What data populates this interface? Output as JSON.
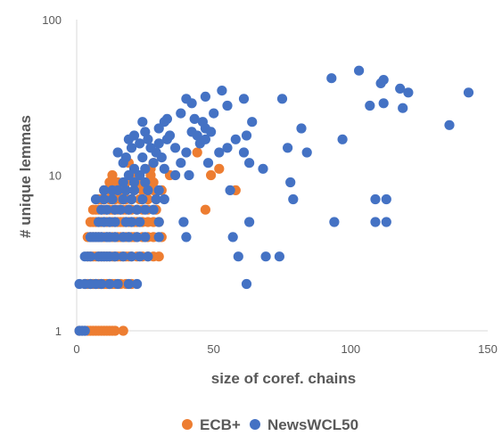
{
  "chart_data": {
    "type": "scatter",
    "title": "",
    "xlabel": "size of coref. chains",
    "ylabel": "# unique lemmas",
    "xlim": [
      0,
      150
    ],
    "ylim": [
      1,
      100
    ],
    "y_scale": "log",
    "x_ticks": [
      "0",
      "50",
      "100",
      "150"
    ],
    "y_ticks": [
      "1",
      "10",
      "100"
    ],
    "grid": false,
    "legend_position": "bottom",
    "series": [
      {
        "name": "ECB+",
        "color": "#ED7D31",
        "points": [
          [
            1,
            1
          ],
          [
            2,
            1
          ],
          [
            3,
            1
          ],
          [
            4,
            1
          ],
          [
            5,
            1
          ],
          [
            6,
            1
          ],
          [
            7,
            1
          ],
          [
            8,
            1
          ],
          [
            9,
            1
          ],
          [
            10,
            1
          ],
          [
            11,
            1
          ],
          [
            12,
            1
          ],
          [
            13,
            1
          ],
          [
            14,
            1
          ],
          [
            17,
            1
          ],
          [
            3,
            2
          ],
          [
            4,
            2
          ],
          [
            5,
            2
          ],
          [
            6,
            2
          ],
          [
            7,
            2
          ],
          [
            8,
            2
          ],
          [
            9,
            2
          ],
          [
            10,
            2
          ],
          [
            11,
            2
          ],
          [
            12,
            2
          ],
          [
            13,
            2
          ],
          [
            14,
            2
          ],
          [
            16,
            2
          ],
          [
            18,
            2
          ],
          [
            20,
            2
          ],
          [
            4,
            3
          ],
          [
            5,
            3
          ],
          [
            6,
            3
          ],
          [
            7,
            3
          ],
          [
            8,
            3
          ],
          [
            9,
            3
          ],
          [
            10,
            3
          ],
          [
            11,
            3
          ],
          [
            12,
            3
          ],
          [
            13,
            3
          ],
          [
            14,
            3
          ],
          [
            15,
            3
          ],
          [
            16,
            3
          ],
          [
            17,
            3
          ],
          [
            18,
            3
          ],
          [
            19,
            3
          ],
          [
            20,
            3
          ],
          [
            22,
            3
          ],
          [
            24,
            3
          ],
          [
            26,
            3
          ],
          [
            28,
            3
          ],
          [
            30,
            3
          ],
          [
            4,
            4
          ],
          [
            5,
            4
          ],
          [
            6,
            4
          ],
          [
            7,
            4
          ],
          [
            8,
            4
          ],
          [
            9,
            4
          ],
          [
            10,
            4
          ],
          [
            11,
            4
          ],
          [
            12,
            4
          ],
          [
            13,
            4
          ],
          [
            14,
            4
          ],
          [
            15,
            4
          ],
          [
            16,
            4
          ],
          [
            17,
            4
          ],
          [
            18,
            4
          ],
          [
            19,
            4
          ],
          [
            20,
            4
          ],
          [
            21,
            4
          ],
          [
            22,
            4
          ],
          [
            24,
            4
          ],
          [
            26,
            4
          ],
          [
            28,
            4
          ],
          [
            31,
            4
          ],
          [
            5,
            5
          ],
          [
            6,
            5
          ],
          [
            7,
            5
          ],
          [
            8,
            5
          ],
          [
            9,
            5
          ],
          [
            10,
            5
          ],
          [
            11,
            5
          ],
          [
            12,
            5
          ],
          [
            13,
            5
          ],
          [
            14,
            5
          ],
          [
            15,
            5
          ],
          [
            16,
            5
          ],
          [
            17,
            5
          ],
          [
            18,
            5
          ],
          [
            19,
            5
          ],
          [
            20,
            5
          ],
          [
            21,
            5
          ],
          [
            22,
            5
          ],
          [
            24,
            5
          ],
          [
            26,
            5
          ],
          [
            28,
            5
          ],
          [
            30,
            5
          ],
          [
            6,
            6
          ],
          [
            7,
            6
          ],
          [
            8,
            6
          ],
          [
            9,
            6
          ],
          [
            10,
            6
          ],
          [
            11,
            6
          ],
          [
            12,
            6
          ],
          [
            13,
            6
          ],
          [
            14,
            6
          ],
          [
            15,
            6
          ],
          [
            16,
            6
          ],
          [
            17,
            6
          ],
          [
            18,
            6
          ],
          [
            19,
            6
          ],
          [
            20,
            6
          ],
          [
            22,
            6
          ],
          [
            24,
            6
          ],
          [
            26,
            6
          ],
          [
            29,
            6
          ],
          [
            47,
            6
          ],
          [
            8,
            7
          ],
          [
            9,
            7
          ],
          [
            10,
            7
          ],
          [
            12,
            7
          ],
          [
            14,
            7
          ],
          [
            16,
            7
          ],
          [
            18,
            7
          ],
          [
            20,
            7
          ],
          [
            23,
            7
          ],
          [
            26,
            7
          ],
          [
            29,
            7
          ],
          [
            10,
            8
          ],
          [
            12,
            8
          ],
          [
            14,
            8
          ],
          [
            16,
            8
          ],
          [
            18,
            8
          ],
          [
            21,
            8
          ],
          [
            24,
            8
          ],
          [
            28,
            8
          ],
          [
            31,
            8
          ],
          [
            58,
            8
          ],
          [
            12,
            9
          ],
          [
            15,
            9
          ],
          [
            18,
            9
          ],
          [
            22,
            9
          ],
          [
            25,
            9
          ],
          [
            28,
            9
          ],
          [
            13,
            10
          ],
          [
            20,
            10
          ],
          [
            27,
            10
          ],
          [
            34,
            10
          ],
          [
            49,
            10
          ],
          [
            27,
            11
          ],
          [
            52,
            11
          ],
          [
            19,
            12
          ],
          [
            28,
            12
          ],
          [
            44,
            14
          ]
        ]
      },
      {
        "name": "NewsWCL50",
        "color": "#4472C4",
        "points": [
          [
            1,
            1
          ],
          [
            2,
            1
          ],
          [
            3,
            1
          ],
          [
            1,
            2
          ],
          [
            3,
            2
          ],
          [
            5,
            2
          ],
          [
            7,
            2
          ],
          [
            9,
            2
          ],
          [
            12,
            2
          ],
          [
            15,
            2
          ],
          [
            19,
            2
          ],
          [
            22,
            2
          ],
          [
            62,
            2
          ],
          [
            3,
            3
          ],
          [
            4,
            3
          ],
          [
            5,
            3
          ],
          [
            8,
            3
          ],
          [
            9,
            3
          ],
          [
            10,
            3
          ],
          [
            11,
            3
          ],
          [
            12,
            3
          ],
          [
            14,
            3
          ],
          [
            17,
            3
          ],
          [
            20,
            3
          ],
          [
            23,
            3
          ],
          [
            26,
            3
          ],
          [
            59,
            3
          ],
          [
            69,
            3
          ],
          [
            74,
            3
          ],
          [
            5,
            4
          ],
          [
            6,
            4
          ],
          [
            7,
            4
          ],
          [
            8,
            4
          ],
          [
            9,
            4
          ],
          [
            11,
            4
          ],
          [
            12,
            4
          ],
          [
            14,
            4
          ],
          [
            17,
            4
          ],
          [
            19,
            4
          ],
          [
            22,
            4
          ],
          [
            25,
            4
          ],
          [
            30,
            4
          ],
          [
            40,
            4
          ],
          [
            57,
            4
          ],
          [
            8,
            5
          ],
          [
            10,
            5
          ],
          [
            12,
            5
          ],
          [
            14,
            5
          ],
          [
            18,
            5
          ],
          [
            20,
            5
          ],
          [
            23,
            5
          ],
          [
            30,
            5
          ],
          [
            39,
            5
          ],
          [
            63,
            5
          ],
          [
            94,
            5
          ],
          [
            109,
            5
          ],
          [
            113,
            5
          ],
          [
            9,
            6
          ],
          [
            11,
            6
          ],
          [
            14,
            6
          ],
          [
            16,
            6
          ],
          [
            19,
            6
          ],
          [
            22,
            6
          ],
          [
            25,
            6
          ],
          [
            28,
            6
          ],
          [
            7,
            7
          ],
          [
            10,
            7
          ],
          [
            13,
            7
          ],
          [
            17,
            7
          ],
          [
            20,
            7
          ],
          [
            24,
            7
          ],
          [
            29,
            7
          ],
          [
            32,
            7
          ],
          [
            79,
            7
          ],
          [
            109,
            7
          ],
          [
            113,
            7
          ],
          [
            10,
            8
          ],
          [
            13,
            8
          ],
          [
            15,
            8
          ],
          [
            18,
            8
          ],
          [
            21,
            8
          ],
          [
            26,
            8
          ],
          [
            30,
            8
          ],
          [
            56,
            8
          ],
          [
            17,
            9
          ],
          [
            21,
            9
          ],
          [
            25,
            9
          ],
          [
            78,
            9
          ],
          [
            19,
            10
          ],
          [
            23,
            10
          ],
          [
            36,
            10
          ],
          [
            41,
            10
          ],
          [
            21,
            11
          ],
          [
            25,
            11
          ],
          [
            32,
            11
          ],
          [
            68,
            11
          ],
          [
            17,
            12
          ],
          [
            28,
            12
          ],
          [
            38,
            12
          ],
          [
            48,
            12
          ],
          [
            63,
            12
          ],
          [
            18,
            13
          ],
          [
            24,
            13
          ],
          [
            31,
            13
          ],
          [
            15,
            14
          ],
          [
            29,
            14
          ],
          [
            40,
            14
          ],
          [
            52,
            14
          ],
          [
            61,
            14
          ],
          [
            84,
            14
          ],
          [
            20,
            15
          ],
          [
            27,
            15
          ],
          [
            36,
            15
          ],
          [
            55,
            15
          ],
          [
            77,
            15
          ],
          [
            23,
            16
          ],
          [
            30,
            16
          ],
          [
            45,
            16
          ],
          [
            19,
            17
          ],
          [
            26,
            17
          ],
          [
            33,
            17
          ],
          [
            47,
            17
          ],
          [
            58,
            17
          ],
          [
            97,
            17
          ],
          [
            21,
            18
          ],
          [
            34,
            18
          ],
          [
            44,
            18
          ],
          [
            62,
            18
          ],
          [
            25,
            19
          ],
          [
            42,
            19
          ],
          [
            49,
            19
          ],
          [
            30,
            20
          ],
          [
            47,
            20
          ],
          [
            82,
            20
          ],
          [
            136,
            21
          ],
          [
            24,
            22
          ],
          [
            32,
            22
          ],
          [
            46,
            22
          ],
          [
            64,
            22
          ],
          [
            33,
            23
          ],
          [
            43,
            23
          ],
          [
            38,
            25
          ],
          [
            50,
            25
          ],
          [
            119,
            27
          ],
          [
            55,
            28
          ],
          [
            107,
            28
          ],
          [
            42,
            29
          ],
          [
            112,
            29
          ],
          [
            40,
            31
          ],
          [
            61,
            31
          ],
          [
            75,
            31
          ],
          [
            47,
            32
          ],
          [
            121,
            34
          ],
          [
            53,
            35
          ],
          [
            143,
            34
          ],
          [
            118,
            36
          ],
          [
            111,
            39
          ],
          [
            93,
            42
          ],
          [
            112,
            41
          ],
          [
            103,
            47
          ]
        ]
      }
    ]
  }
}
